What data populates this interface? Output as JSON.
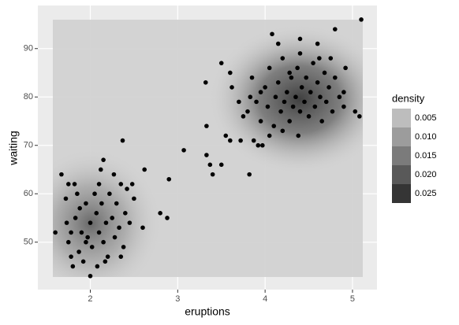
{
  "chart_data": {
    "type": "scatter",
    "x_label": "eruptions",
    "y_label": "waiting",
    "x": [
      1.6,
      1.67,
      1.75,
      2.0,
      2.12,
      2.15,
      2.37,
      2.42,
      2.48,
      2.62,
      2.6,
      2.8,
      2.88,
      2.9,
      3.07,
      3.32,
      3.33,
      3.33,
      3.37,
      3.4,
      3.5,
      3.5,
      3.6,
      3.62,
      3.55,
      3.6,
      3.72,
      3.82,
      3.83,
      3.87,
      3.92,
      3.97,
      3.95,
      4.08,
      4.15,
      4.28,
      4.4,
      4.4,
      4.6,
      4.62,
      4.75,
      4.8,
      4.9,
      5.03,
      5.08,
      5.1,
      1.73,
      1.75,
      1.78,
      1.8,
      1.83,
      1.85,
      1.87,
      1.9,
      1.92,
      1.95,
      1.97,
      2.0,
      2.02,
      2.05,
      2.07,
      2.08,
      2.1,
      2.13,
      2.15,
      2.18,
      2.2,
      2.22,
      2.25,
      2.28,
      2.3,
      2.33,
      2.35,
      2.38,
      2.4,
      2.45,
      2.5,
      1.82,
      1.88,
      1.72,
      1.78,
      1.95,
      2.1,
      2.27,
      2.35,
      2.17,
      3.8,
      3.85,
      3.9,
      3.95,
      4.0,
      4.03,
      4.05,
      4.1,
      4.12,
      4.15,
      4.18,
      4.2,
      4.22,
      4.25,
      4.28,
      4.3,
      4.32,
      4.35,
      4.37,
      4.4,
      4.42,
      4.45,
      4.47,
      4.5,
      4.52,
      4.55,
      4.57,
      4.6,
      4.63,
      4.65,
      4.68,
      4.7,
      4.73,
      4.77,
      4.8,
      4.85,
      4.9,
      4.92,
      4.05,
      4.2,
      4.38,
      3.7,
      3.75
    ],
    "values": [
      52,
      64,
      62,
      43,
      65,
      67,
      71,
      61,
      62,
      65,
      53,
      56,
      55,
      63,
      69,
      83,
      74,
      68,
      66,
      64,
      66,
      87,
      85,
      82,
      72,
      71,
      71,
      64,
      80,
      71,
      70,
      70,
      81,
      93,
      91,
      85,
      89,
      92,
      91,
      88,
      88,
      94,
      81,
      77,
      76,
      96,
      54,
      50,
      47,
      45,
      55,
      60,
      48,
      52,
      46,
      58,
      51,
      54,
      49,
      60,
      56,
      45,
      52,
      58,
      50,
      54,
      47,
      60,
      55,
      51,
      58,
      53,
      62,
      49,
      56,
      54,
      59,
      62,
      57,
      59,
      52,
      50,
      62,
      64,
      47,
      46,
      77,
      84,
      79,
      75,
      82,
      78,
      86,
      74,
      80,
      83,
      77,
      88,
      79,
      81,
      75,
      84,
      78,
      80,
      86,
      77,
      82,
      79,
      84,
      76,
      81,
      87,
      78,
      83,
      80,
      75,
      85,
      79,
      82,
      77,
      84,
      80,
      78,
      86,
      72,
      73,
      72,
      79,
      76
    ],
    "point_color": "#000000",
    "xlim": [
      1.4,
      5.28
    ],
    "ylim": [
      40.2,
      98.9
    ],
    "xticks": [
      2,
      3,
      4,
      5
    ],
    "yticks": [
      50,
      60,
      70,
      80,
      90
    ],
    "grid": true,
    "legend": {
      "title": "density",
      "position": "right",
      "breaks": [
        0.005,
        0.01,
        0.015,
        0.02,
        0.025
      ],
      "break_labels": [
        "0.005",
        "0.010",
        "0.015",
        "0.020",
        "0.025"
      ],
      "colors": [
        "#bdbdbd",
        "#9c9c9c",
        "#7b7b7b",
        "#595959",
        "#353535"
      ]
    }
  }
}
